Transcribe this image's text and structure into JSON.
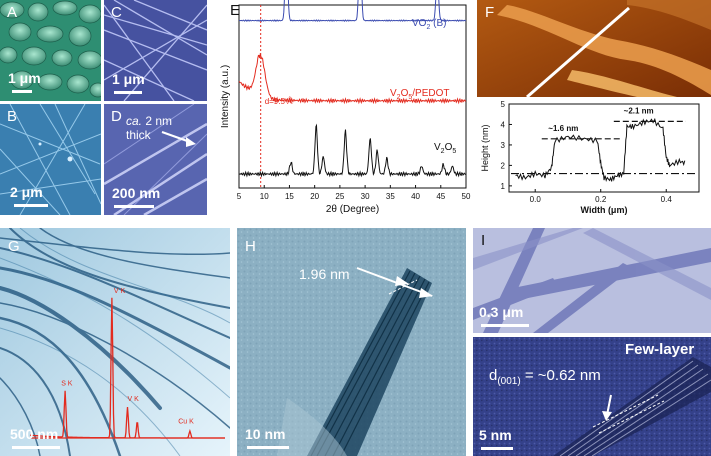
{
  "panels": {
    "A": {
      "label": "A",
      "scale": "1 μm"
    },
    "B": {
      "label": "B",
      "scale": "2 μm"
    },
    "C": {
      "label": "C",
      "scale": "1 μm"
    },
    "D": {
      "label": "D",
      "scale": "200 nm",
      "annotation_italic": "ca.",
      "annotation_rest": " 2 nm",
      "annotation_line2": "thick"
    },
    "E": {
      "label": "E"
    },
    "F": {
      "label": "F"
    },
    "G": {
      "label": "G",
      "scale": "500 nm"
    },
    "H": {
      "label": "H",
      "scale": "10 nm",
      "annotation": "1.96 nm"
    },
    "I": {
      "label": "I",
      "scale_top": "0.3 μm",
      "scale_bottom": "5 nm",
      "tag": "Few-layer",
      "d_label_main": "d",
      "d_label_sub": "(001)",
      "d_label_rest": " = ~0.62 nm"
    }
  },
  "chart_data": [
    {
      "type": "line",
      "panel": "E",
      "xlabel": "2θ (Degree)",
      "ylabel": "Intensity (a.u.)",
      "xlim": [
        5,
        50
      ],
      "xticks": [
        "5",
        "10",
        "15",
        "20",
        "25",
        "30",
        "35",
        "40",
        "45",
        "50"
      ],
      "annotation": "d=9.5 Å",
      "marker_line_x": 9.3,
      "series": [
        {
          "name": "VO2 (B)",
          "name_main": "VO",
          "name_sub": "2",
          "name_rest": " (B)",
          "color": "#3b4bb0",
          "peaks": [
            [
              14.4,
              1.0
            ],
            [
              29.0,
              0.95
            ],
            [
              44.3,
              0.55
            ]
          ],
          "baseline": 2.15
        },
        {
          "name": "V2O5/PEDOT",
          "name_main": "V",
          "name_sub": "2",
          "name_mid": "O",
          "name_sub2": "5",
          "name_rest": "/PEDOT",
          "color": "#e32b1f",
          "peaks": [
            [
              9.3,
              0.55
            ]
          ],
          "baseline": 1.12
        },
        {
          "name": "V2O5",
          "name_main": "V",
          "name_sub": "2",
          "name_mid": "O",
          "name_sub2": "5",
          "name_rest": "",
          "color": "#111111",
          "peaks": [
            [
              15.3,
              0.15
            ],
            [
              20.3,
              0.62
            ],
            [
              21.7,
              0.22
            ],
            [
              26.1,
              0.55
            ],
            [
              31.0,
              0.45
            ],
            [
              32.4,
              0.3
            ],
            [
              34.3,
              0.2
            ],
            [
              41.2,
              0.1
            ],
            [
              45.5,
              0.12
            ],
            [
              47.3,
              0.1
            ]
          ],
          "baseline": 0.18
        }
      ]
    },
    {
      "type": "line",
      "panel": "F",
      "xlabel": "Width (μm)",
      "ylabel": "Height (nm)",
      "xlim": [
        -0.08,
        0.5
      ],
      "ylim": [
        0.7,
        5
      ],
      "xticks": [
        0.0,
        0.2,
        0.4
      ],
      "yticks": [
        1,
        2,
        3,
        4,
        5
      ],
      "annotations": [
        "~1.6 nm",
        "~2.1 nm"
      ],
      "levels": {
        "base": 1.6,
        "step1": 3.3,
        "step2": 4.15
      },
      "series": [
        {
          "name": "",
          "color": "#111111",
          "x": [
            -0.06,
            -0.03,
            0.0,
            0.03,
            0.05,
            0.06,
            0.1,
            0.15,
            0.19,
            0.2,
            0.21,
            0.23,
            0.25,
            0.27,
            0.28,
            0.3,
            0.33,
            0.36,
            0.39,
            0.4,
            0.41,
            0.44,
            0.46
          ],
          "y": [
            1.5,
            1.4,
            1.6,
            1.5,
            1.9,
            3.2,
            3.4,
            3.3,
            3.2,
            2.1,
            1.4,
            1.3,
            1.5,
            1.6,
            3.9,
            3.9,
            4.1,
            4.2,
            3.8,
            2.4,
            2.0,
            2.2,
            2.1
          ]
        }
      ]
    },
    {
      "type": "line",
      "panel": "G",
      "xlabel": "",
      "ylabel": "",
      "labels": [
        "V K",
        "S K",
        "V K",
        "Cu K"
      ],
      "series": [
        {
          "name": "",
          "color": "#e32b1f",
          "peaks": [
            [
              0.42,
              1.0
            ],
            [
              0.18,
              0.33
            ],
            [
              0.5,
              0.22
            ],
            [
              0.55,
              0.12
            ],
            [
              0.82,
              0.05
            ]
          ]
        }
      ]
    }
  ]
}
